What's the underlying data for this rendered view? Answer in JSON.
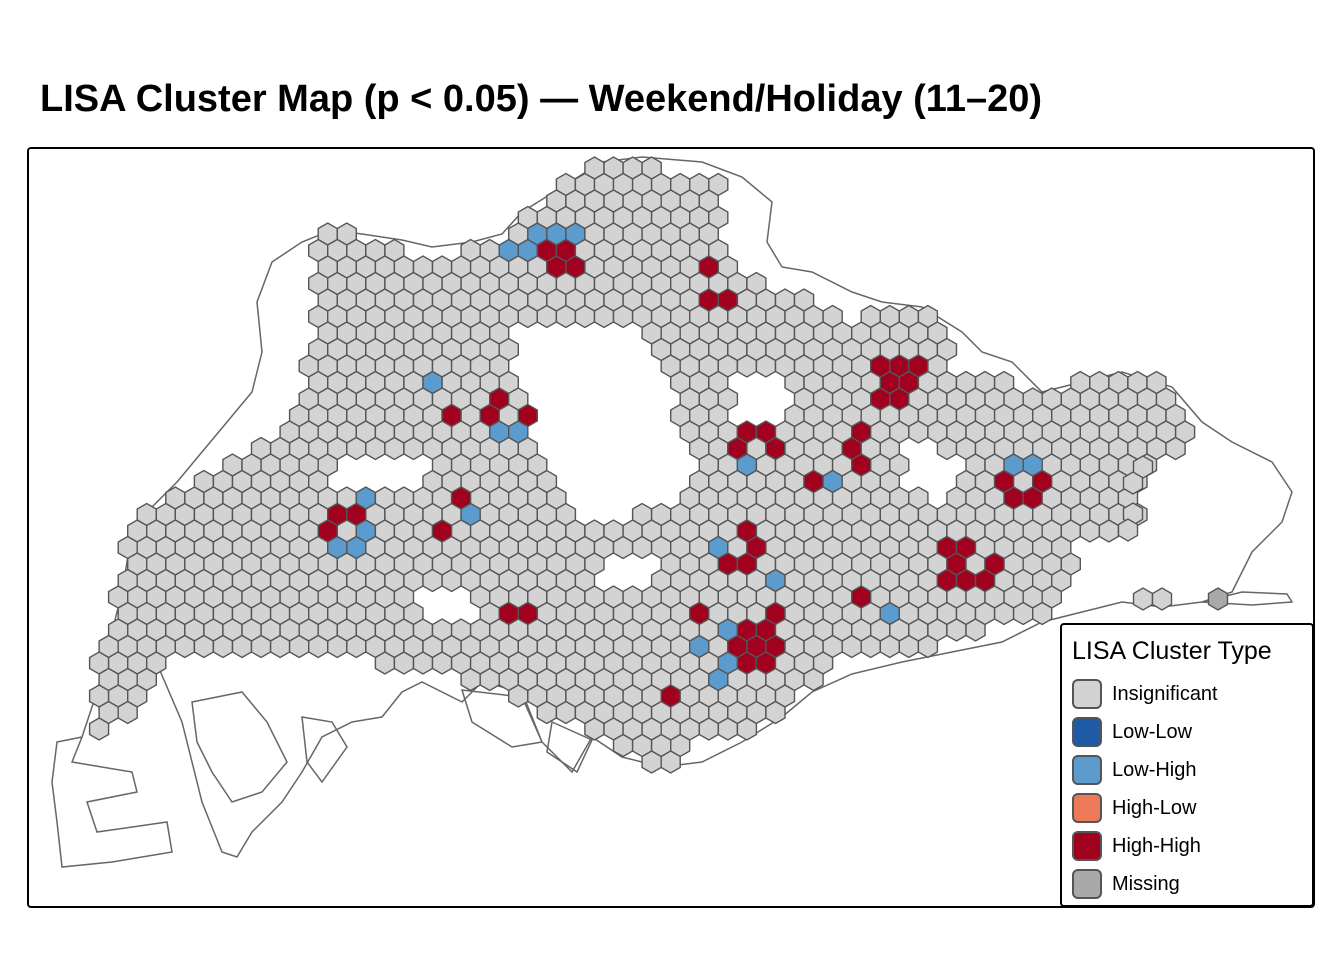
{
  "title": "LISA Cluster Map (p < 0.05) — Weekend/Holiday (11–20)",
  "legend": {
    "title": "LISA Cluster Type",
    "items": [
      {
        "label": "Insignificant",
        "color": "#d3d3d3"
      },
      {
        "label": "Low-Low",
        "color": "#1f5aa6"
      },
      {
        "label": "Low-High",
        "color": "#5b9bcd"
      },
      {
        "label": "High-Low",
        "color": "#ec7a59"
      },
      {
        "label": "High-High",
        "color": "#a1001f"
      },
      {
        "label": "Missing",
        "color": "#a9a9a9"
      }
    ]
  },
  "colors": {
    "outline": "#666666",
    "cell_border": "#555555",
    "frame": "#000000"
  }
}
